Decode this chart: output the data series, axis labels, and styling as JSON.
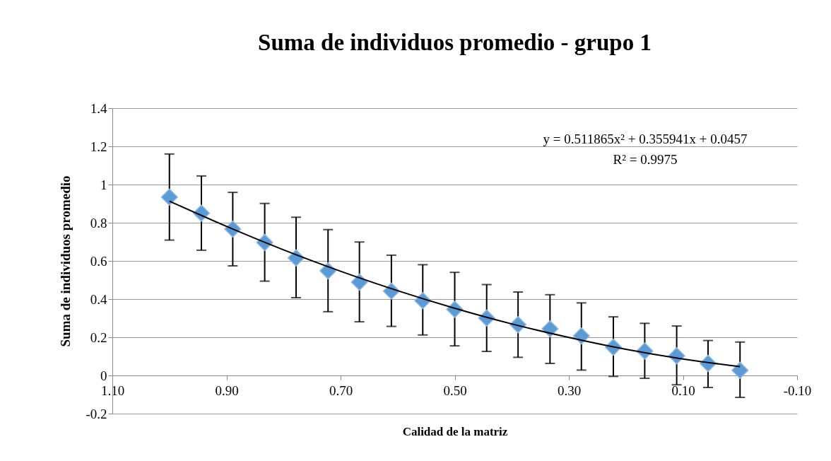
{
  "chart_data": {
    "type": "scatter",
    "title": "Suma de individuos promedio - grupo 1",
    "xlabel": "Calidad de la matriz",
    "ylabel": "Suma de individuos promedio",
    "xlim": [
      1.1,
      -0.1
    ],
    "xticks": [
      {
        "value": 1.1,
        "label": "1.10"
      },
      {
        "value": 0.9,
        "label": "0.90"
      },
      {
        "value": 0.7,
        "label": "0.70"
      },
      {
        "value": 0.5,
        "label": "0.50"
      },
      {
        "value": 0.3,
        "label": "0.30"
      },
      {
        "value": 0.1,
        "label": "0.10"
      },
      {
        "value": -0.1,
        "label": "-0.10"
      }
    ],
    "ylim": [
      -0.2,
      1.4
    ],
    "yticks": [
      -0.2,
      0,
      0.2,
      0.4,
      0.6,
      0.8,
      1,
      1.2,
      1.4
    ],
    "grid": "y",
    "marker": "diamond",
    "annotations": [
      "y = 0.511865x² + 0.355941x + 0.0457",
      "R² = 0.9975"
    ],
    "series": [
      {
        "type": "scatter",
        "color": "#5b9bd5",
        "x": [
          1.0,
          0.944,
          0.889,
          0.833,
          0.778,
          0.722,
          0.667,
          0.611,
          0.556,
          0.5,
          0.444,
          0.389,
          0.333,
          0.278,
          0.222,
          0.167,
          0.111,
          0.056,
          0.0
        ],
        "values": [
          0.934,
          0.85,
          0.767,
          0.696,
          0.616,
          0.548,
          0.489,
          0.442,
          0.392,
          0.346,
          0.301,
          0.266,
          0.244,
          0.207,
          0.148,
          0.128,
          0.103,
          0.063,
          0.027
        ],
        "errors": [
          [
            0.709,
            1.16
          ],
          [
            0.656,
            1.045
          ],
          [
            0.574,
            0.959
          ],
          [
            0.494,
            0.901
          ],
          [
            0.407,
            0.829
          ],
          [
            0.334,
            0.764
          ],
          [
            0.281,
            0.699
          ],
          [
            0.257,
            0.63
          ],
          [
            0.212,
            0.58
          ],
          [
            0.155,
            0.54
          ],
          [
            0.126,
            0.476
          ],
          [
            0.095,
            0.437
          ],
          [
            0.063,
            0.423
          ],
          [
            0.028,
            0.38
          ],
          [
            -0.005,
            0.307
          ],
          [
            -0.015,
            0.273
          ],
          [
            -0.049,
            0.259
          ],
          [
            -0.063,
            0.183
          ],
          [
            -0.115,
            0.175
          ]
        ]
      },
      {
        "type": "line",
        "color": "#000000",
        "line_style": "solid",
        "marker": "none",
        "x": [
          1.0,
          0.9,
          0.8,
          0.7,
          0.6,
          0.5,
          0.4,
          0.3,
          0.2,
          0.1,
          0.0
        ],
        "values": [
          0.913,
          0.781,
          0.658,
          0.546,
          0.444,
          0.352,
          0.27,
          0.199,
          0.137,
          0.086,
          0.046
        ]
      }
    ]
  }
}
